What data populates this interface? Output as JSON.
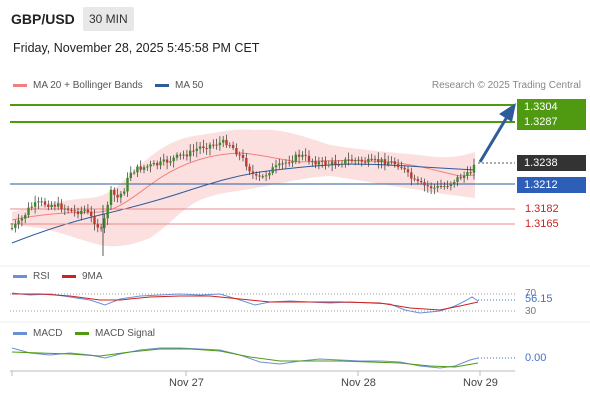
{
  "header": {
    "pair": "GBP/USD",
    "timeframe": "30 MIN",
    "datetime": "Friday, November 28, 2025 5:45:58 PM CET"
  },
  "legend": {
    "bollinger": "MA 20 + Bollinger Bands",
    "ma50": "MA 50",
    "credit": "Research © 2025 Trading Central"
  },
  "levels": {
    "r2": "1.3304",
    "r1": "1.3287",
    "current": "1.3238",
    "pivot": "1.3212",
    "s1": "1.3182",
    "s2": "1.3165"
  },
  "rsi": {
    "label": "RSI",
    "ma_label": "9MA",
    "tick70": "70",
    "tick30": "30",
    "value": "56.15"
  },
  "macd": {
    "label": "MACD",
    "signal_label": "MACD Signal",
    "value": "0.00"
  },
  "xaxis": {
    "labels": [
      "Nov 27",
      "Nov 28",
      "Nov 29"
    ]
  },
  "colors": {
    "green": "#4f9a10",
    "blue": "#2e5b9a",
    "red": "#d9534f",
    "bollinger": "#fbd6d6",
    "dark": "#333333"
  }
}
